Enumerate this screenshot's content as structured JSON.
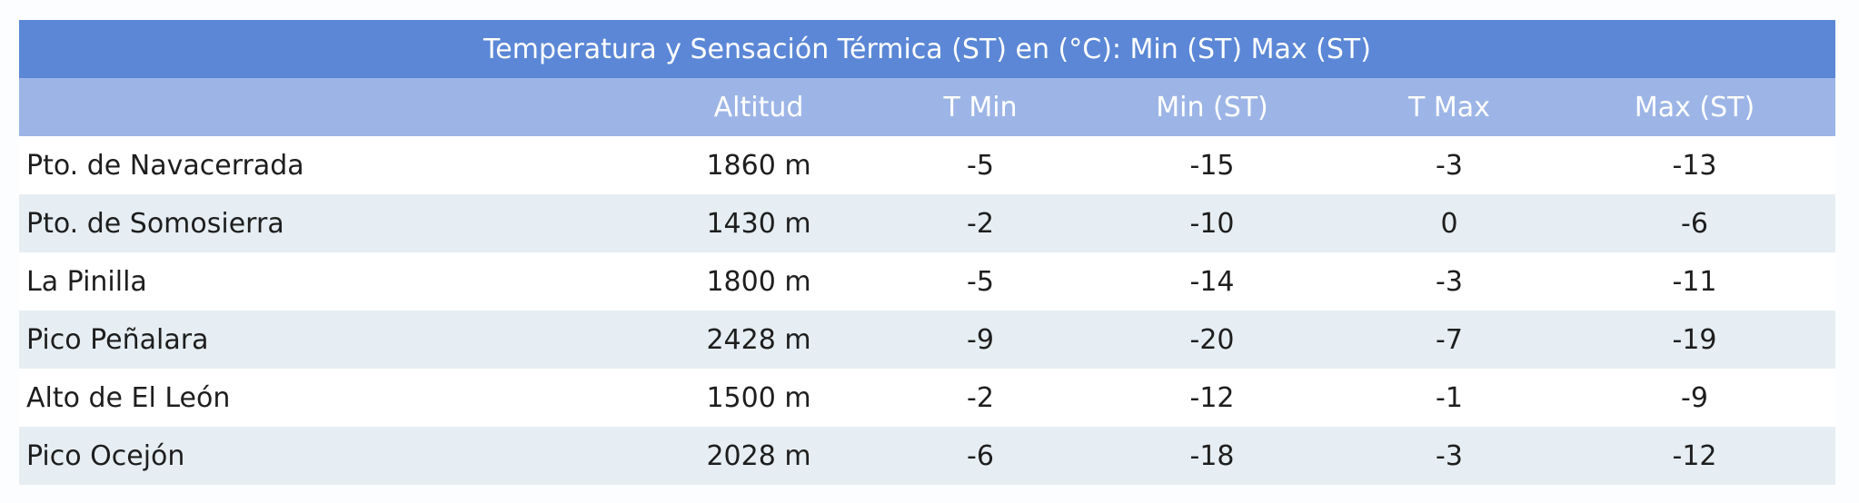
{
  "table": {
    "title": "Temperatura y Sensación Térmica (ST) en (°C): Min (ST) Max (ST)",
    "headers": [
      "Altitud",
      "T Min",
      "Min (ST)",
      "T Max",
      "Max (ST)"
    ],
    "rows": [
      [
        "Pto. de Navacerrada",
        "1860 m",
        "-5",
        "-15",
        "-3",
        "-13"
      ],
      [
        "Pto. de Somosierra",
        "1430 m",
        "-2",
        "-10",
        "0",
        "-6"
      ],
      [
        "La Pinilla",
        "1800 m",
        "-5",
        "-14",
        "-3",
        "-11"
      ],
      [
        "Pico Peñalara",
        "2428 m",
        "-9",
        "-20",
        "-7",
        "-19"
      ],
      [
        "Alto de El León",
        "1500 m",
        "-2",
        "-12",
        "-1",
        "-9"
      ],
      [
        "Pico Ocejón",
        "2028 m",
        "-6",
        "-18",
        "-3",
        "-12"
      ]
    ]
  }
}
